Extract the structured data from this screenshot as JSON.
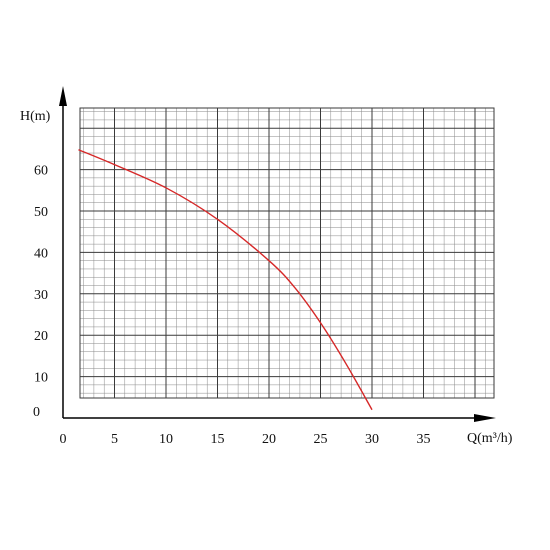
{
  "chart_data": {
    "type": "line",
    "title": "",
    "xlabel": "Q(m³/h)",
    "ylabel": "H(m)",
    "xlim": [
      0,
      40
    ],
    "ylim": [
      0,
      70
    ],
    "x_ticks": [
      0,
      5,
      10,
      15,
      20,
      25,
      30,
      35
    ],
    "y_ticks": [
      0,
      10,
      20,
      30,
      40,
      50,
      60
    ],
    "grid": true,
    "legend": "none",
    "series": [
      {
        "color": "#d62828",
        "points": [
          [
            1.5,
            64.8
          ],
          [
            5,
            61.2
          ],
          [
            10,
            55.6
          ],
          [
            15,
            48.0
          ],
          [
            20,
            38.0
          ],
          [
            22.5,
            31.5
          ],
          [
            25,
            23.0
          ],
          [
            27.5,
            13.0
          ],
          [
            30,
            2.0
          ]
        ]
      }
    ]
  }
}
